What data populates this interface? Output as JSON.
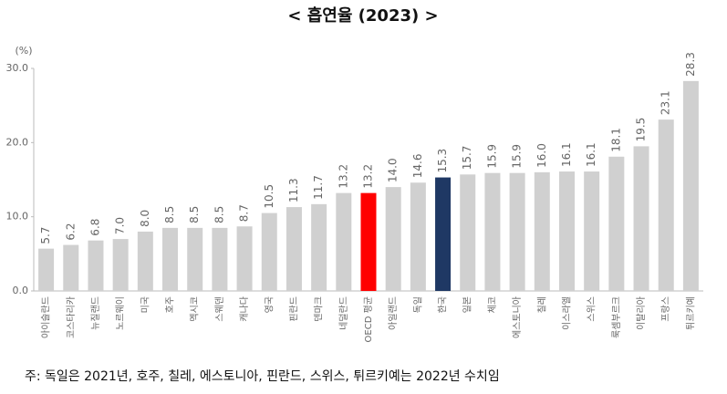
{
  "chart_data": {
    "type": "bar",
    "title": "< 흡연율 (2023) >",
    "y_label": "(%)",
    "categories": [
      "아이슬란드",
      "코스타리카",
      "뉴질랜드",
      "노르웨이",
      "미국",
      "호주",
      "멕시코",
      "스웨덴",
      "캐나다",
      "영국",
      "핀란드",
      "덴마크",
      "네덜란드",
      "OECD 평균",
      "아일랜드",
      "독일",
      "한국",
      "일본",
      "체코",
      "에스토니아",
      "칠레",
      "이스라엘",
      "스위스",
      "룩셈부르크",
      "이탈리아",
      "프랑스",
      "튀르키예"
    ],
    "values": [
      5.7,
      6.2,
      6.8,
      7.0,
      8.0,
      8.5,
      8.5,
      8.5,
      8.7,
      10.5,
      11.3,
      11.7,
      13.2,
      13.2,
      14.0,
      14.6,
      15.3,
      15.7,
      15.9,
      15.9,
      16.0,
      16.1,
      16.1,
      18.1,
      19.5,
      23.1,
      28.3
    ],
    "value_labels": [
      "5.7",
      "6.2",
      "6.8",
      "7.0",
      "8.0",
      "8.5",
      "8.5",
      "8.5",
      "8.7",
      "10.5",
      "11.3",
      "11.7",
      "13.2",
      "13.2",
      "14.0",
      "14.6",
      "15.3",
      "15.7",
      "15.9",
      "15.9",
      "16.0",
      "16.1",
      "16.1",
      "18.1",
      "19.5",
      "23.1",
      "28.3"
    ],
    "colors": [
      "#d0d0d0",
      "#d0d0d0",
      "#d0d0d0",
      "#d0d0d0",
      "#d0d0d0",
      "#d0d0d0",
      "#d0d0d0",
      "#d0d0d0",
      "#d0d0d0",
      "#d0d0d0",
      "#d0d0d0",
      "#d0d0d0",
      "#d0d0d0",
      "#ff0000",
      "#d0d0d0",
      "#d0d0d0",
      "#1f3864",
      "#d0d0d0",
      "#d0d0d0",
      "#d0d0d0",
      "#d0d0d0",
      "#d0d0d0",
      "#d0d0d0",
      "#d0d0d0",
      "#d0d0d0",
      "#d0d0d0",
      "#d0d0d0"
    ],
    "ylim": [
      0,
      30
    ],
    "yticks": [
      {
        "value": 0,
        "label": "0.0"
      },
      {
        "value": 10,
        "label": "10.0"
      },
      {
        "value": 20,
        "label": "20.0"
      },
      {
        "value": 30,
        "label": "30.0"
      }
    ],
    "grid": false,
    "note": "주: 독일은 2021년, 호주, 칠레, 에스토니아, 핀란드, 스위스, 튀르키예는 2022년 수치임"
  }
}
